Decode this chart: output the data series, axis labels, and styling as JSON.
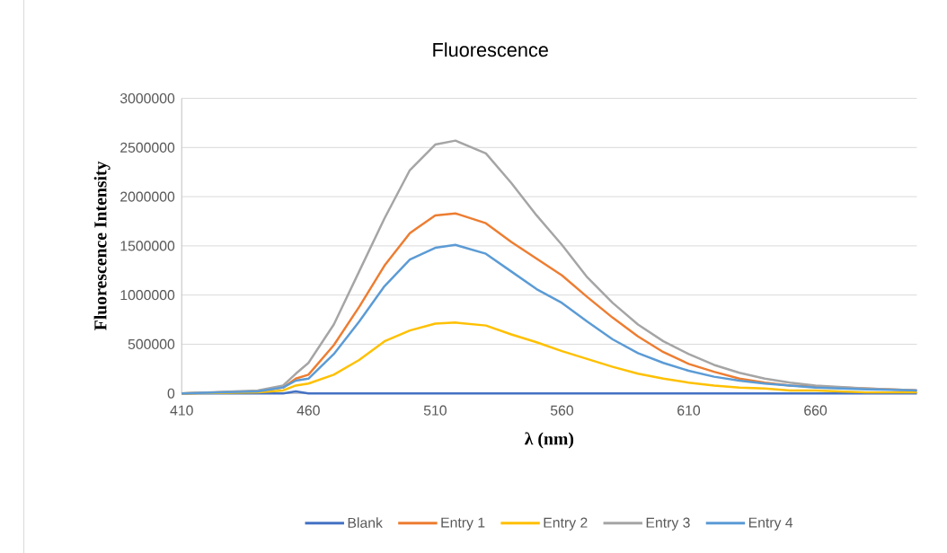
{
  "chart_data": {
    "type": "line",
    "title": "Fluorescence",
    "xlabel": "λ  (nm)",
    "ylabel": "Fluorescence Intensity",
    "x": [
      410,
      440,
      450,
      455,
      460,
      470,
      480,
      490,
      500,
      510,
      518,
      530,
      540,
      550,
      560,
      570,
      580,
      590,
      600,
      610,
      620,
      630,
      640,
      650,
      660,
      680,
      700
    ],
    "series": [
      {
        "name": "Blank",
        "color": "#4472c4",
        "values": [
          0,
          0,
          0,
          20000,
          0,
          0,
          0,
          0,
          0,
          0,
          0,
          0,
          0,
          0,
          0,
          0,
          0,
          0,
          0,
          0,
          0,
          0,
          0,
          0,
          0,
          0,
          0
        ]
      },
      {
        "name": "Entry 1",
        "color": "#ed7d31",
        "values": [
          0,
          20000,
          60000,
          150000,
          190000,
          490000,
          880000,
          1300000,
          1630000,
          1810000,
          1830000,
          1730000,
          1540000,
          1370000,
          1200000,
          980000,
          770000,
          580000,
          420000,
          300000,
          220000,
          150000,
          110000,
          80000,
          70000,
          50000,
          30000
        ]
      },
      {
        "name": "Entry 2",
        "color": "#ffc000",
        "values": [
          0,
          10000,
          30000,
          80000,
          100000,
          190000,
          340000,
          530000,
          640000,
          710000,
          720000,
          690000,
          600000,
          520000,
          430000,
          350000,
          270000,
          200000,
          150000,
          110000,
          80000,
          60000,
          50000,
          30000,
          30000,
          10000,
          10000
        ]
      },
      {
        "name": "Entry 3",
        "color": "#a5a5a5",
        "values": [
          0,
          30000,
          80000,
          200000,
          310000,
          700000,
          1240000,
          1780000,
          2270000,
          2530000,
          2570000,
          2440000,
          2140000,
          1810000,
          1510000,
          1180000,
          920000,
          700000,
          530000,
          400000,
          290000,
          210000,
          150000,
          110000,
          80000,
          50000,
          30000
        ]
      },
      {
        "name": "Entry 4",
        "color": "#5b9bd5",
        "values": [
          0,
          20000,
          60000,
          130000,
          150000,
          400000,
          730000,
          1090000,
          1360000,
          1480000,
          1510000,
          1420000,
          1240000,
          1060000,
          920000,
          730000,
          550000,
          410000,
          310000,
          230000,
          170000,
          130000,
          100000,
          80000,
          60000,
          40000,
          30000
        ]
      }
    ],
    "xlim": [
      410,
      700
    ],
    "xticks": [
      410,
      460,
      510,
      560,
      610,
      660
    ],
    "ylim": [
      0,
      3000000
    ],
    "yticks": [
      0,
      500000,
      1000000,
      1500000,
      2000000,
      2500000,
      3000000
    ],
    "grid": "y",
    "legend": "bottom"
  }
}
